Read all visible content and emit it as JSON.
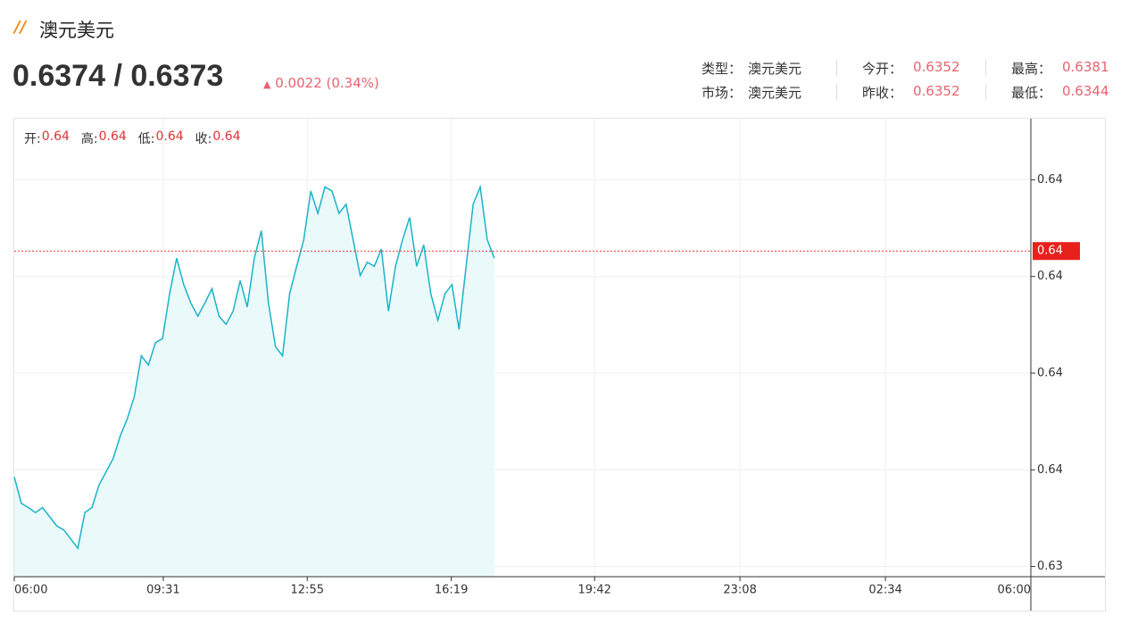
{
  "header": {
    "title": "澳元美元",
    "price": "0.6374 / 0.6373",
    "change": "0.0022 (0.34%)"
  },
  "stats": [
    [
      {
        "label": "类型：",
        "value": "澳元美元"
      },
      {
        "label": "今开：",
        "value": "0.6352"
      },
      {
        "label": "最高：",
        "value": "0.6381"
      }
    ],
    [
      {
        "label": "市场：",
        "value": "澳元美元"
      },
      {
        "label": "昨收：",
        "value": "0.6352"
      },
      {
        "label": "最低：",
        "value": "0.6344"
      }
    ]
  ],
  "ohlc": [
    {
      "label": "开:",
      "value": "0.64"
    },
    {
      "label": "高:",
      "value": "0.64"
    },
    {
      "label": "低:",
      "value": "0.64"
    },
    {
      "label": "收:",
      "value": "0.64"
    }
  ],
  "chart_data": {
    "type": "line",
    "color": "#1ab4c8",
    "fill": "#eaf9fa",
    "x": [
      "06:00",
      "06:10",
      "06:20",
      "06:30",
      "06:40",
      "06:50",
      "07:00",
      "07:10",
      "07:20",
      "07:30",
      "07:40",
      "07:50",
      "08:00",
      "08:10",
      "08:20",
      "08:30",
      "08:40",
      "08:50",
      "09:00",
      "09:10",
      "09:20",
      "09:30",
      "09:40",
      "09:50",
      "10:00",
      "10:10",
      "10:20",
      "10:30",
      "10:40",
      "10:50",
      "11:00",
      "11:10",
      "11:20",
      "11:30",
      "11:40",
      "11:50",
      "12:00",
      "12:10",
      "12:20",
      "12:30",
      "12:40",
      "12:50",
      "13:00",
      "13:10",
      "13:20",
      "13:30",
      "13:40",
      "13:50",
      "14:00",
      "14:10",
      "14:20",
      "14:30",
      "14:40",
      "14:50",
      "15:00",
      "15:10",
      "15:20",
      "15:30",
      "15:40",
      "15:50",
      "16:00",
      "16:10",
      "16:20",
      "16:30",
      "16:40",
      "16:50",
      "17:00",
      "17:10",
      "17:20"
    ],
    "values": [
      0.63518,
      0.63492,
      0.63488,
      0.63483,
      0.63488,
      0.63479,
      0.6347,
      0.63466,
      0.63457,
      0.63448,
      0.63483,
      0.63488,
      0.6351,
      0.63523,
      0.63536,
      0.63558,
      0.63575,
      0.63597,
      0.63637,
      0.63628,
      0.6365,
      0.63654,
      0.63698,
      0.63733,
      0.63707,
      0.63689,
      0.63676,
      0.63689,
      0.63703,
      0.63676,
      0.63668,
      0.63681,
      0.63711,
      0.63685,
      0.63733,
      0.6376,
      0.63689,
      0.63646,
      0.63637,
      0.63698,
      0.63725,
      0.63751,
      0.63799,
      0.63777,
      0.63803,
      0.63799,
      0.63777,
      0.63786,
      0.63751,
      0.63716,
      0.63729,
      0.63725,
      0.63742,
      0.63681,
      0.63725,
      0.63751,
      0.63773,
      0.63725,
      0.63746,
      0.63698,
      0.63672,
      0.63698,
      0.63707,
      0.63663,
      0.63725,
      0.63786,
      0.63803,
      0.63751,
      0.63733
    ],
    "xlim": [
      "06:00",
      "06:00"
    ],
    "xticks": [
      "06:00",
      "09:31",
      "12:55",
      "16:19",
      "19:42",
      "23:08",
      "02:34",
      "06:00"
    ],
    "ylim": [
      0.6342,
      0.6387
    ],
    "yticks": [
      {
        "value": 0.6381,
        "label": "0.64"
      },
      {
        "value": 0.63715,
        "label": "0.64"
      },
      {
        "value": 0.6362,
        "label": "0.64"
      },
      {
        "value": 0.63525,
        "label": "0.64"
      },
      {
        "value": 0.6343,
        "label": "0.63"
      }
    ],
    "last_price": {
      "value": 0.6374,
      "label": "0.64"
    },
    "grid": true
  }
}
